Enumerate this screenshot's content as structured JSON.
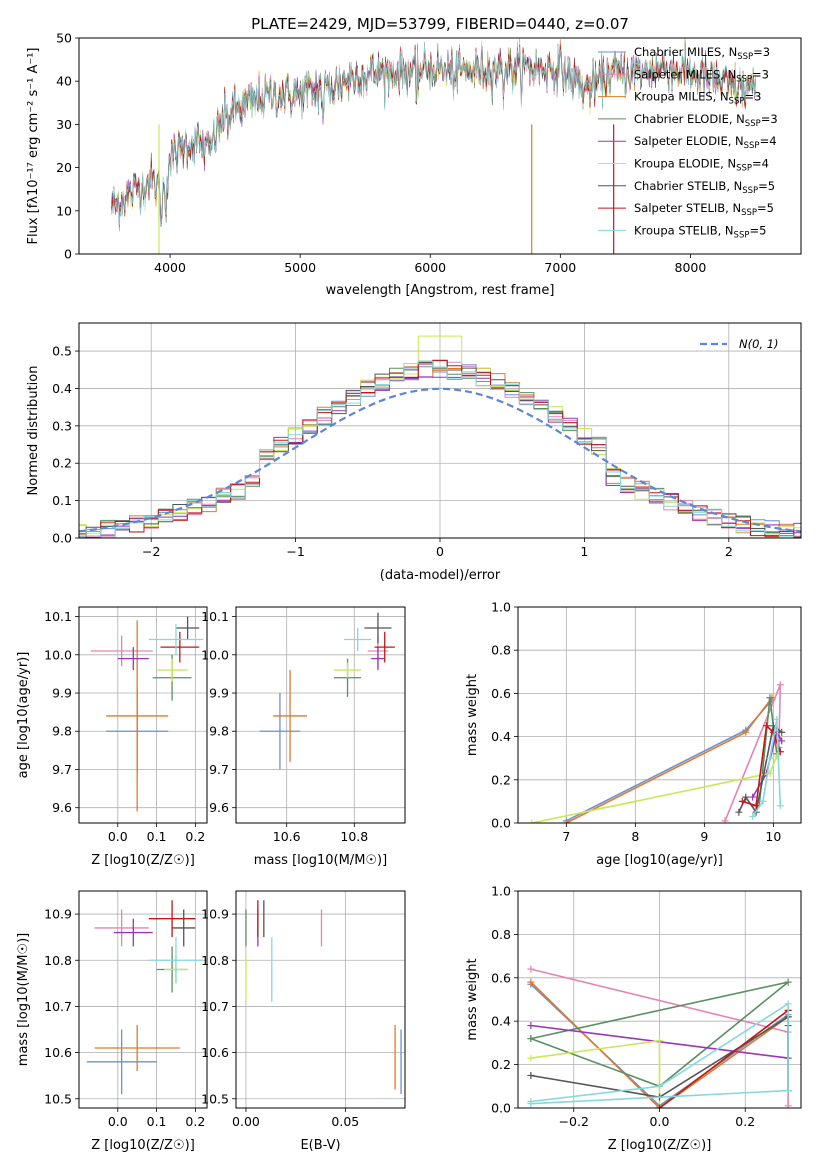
{
  "figure": {
    "title": "PLATE=2429, MJD=53799, FIBERID=0440, z=0.07"
  },
  "colors": {
    "Chabrier MILES": "#6a90d8",
    "Salpeter MILES": "#e583b4",
    "Kroupa MILES": "#e07a2a",
    "Chabrier ELODIE": "#5a8f62",
    "Salpeter ELODIE": "#9a34b8",
    "Kroupa ELODIE": "#c8e855",
    "Chabrier STELIB": "#555555",
    "Salpeter STELIB": "#c01818",
    "Kroupa STELIB": "#85d9dd",
    "normal": "#5b87d6"
  },
  "legend": [
    {
      "label": "Chabrier MILES, N",
      "sub": "SSP",
      "tail": "=3",
      "key": "Chabrier MILES"
    },
    {
      "label": "Salpeter MILES, N",
      "sub": "SSP",
      "tail": "=3",
      "key": "Salpeter MILES"
    },
    {
      "label": "Kroupa MILES, N",
      "sub": "SSP",
      "tail": "=3",
      "key": "Kroupa MILES"
    },
    {
      "label": "Chabrier ELODIE, N",
      "sub": "SSP",
      "tail": "=3",
      "key": "Chabrier ELODIE"
    },
    {
      "label": "Salpeter ELODIE, N",
      "sub": "SSP",
      "tail": "=4",
      "key": "Salpeter ELODIE"
    },
    {
      "label": "Kroupa ELODIE, N",
      "sub": "SSP",
      "tail": "=4",
      "key": "Kroupa ELODIE"
    },
    {
      "label": "Chabrier STELIB, N",
      "sub": "SSP",
      "tail": "=5",
      "key": "Chabrier STELIB"
    },
    {
      "label": "Salpeter STELIB, N",
      "sub": "SSP",
      "tail": "=5",
      "key": "Salpeter STELIB"
    },
    {
      "label": "Kroupa STELIB, N",
      "sub": "SSP",
      "tail": "=5",
      "key": "Kroupa STELIB"
    }
  ],
  "chart_data": [
    {
      "id": "spectrum",
      "type": "line",
      "xlabel": "wavelength [Angstrom, rest frame]",
      "ylabel": "Flux [fλ10⁻¹⁷ erg cm⁻² s⁻¹ A⁻¹]",
      "xlim": [
        3300,
        8850
      ],
      "ylim": [
        0,
        50
      ],
      "xticks": [
        4000,
        5000,
        6000,
        7000,
        8000
      ],
      "yticks": [
        0,
        10,
        20,
        30,
        40,
        50
      ],
      "continuum": {
        "x": [
          3550,
          3700,
          3850,
          3950,
          4000,
          4100,
          4200,
          4300,
          4400,
          4500,
          4600,
          4800,
          5000,
          5200,
          5400,
          5600,
          5800,
          6000,
          6200,
          6400,
          6600,
          6800,
          7000,
          7200,
          7400,
          7600,
          7800,
          8000,
          8200,
          8400,
          8500
        ],
        "y": [
          11,
          14,
          17,
          15,
          22,
          25,
          26,
          24,
          31,
          33,
          35,
          37,
          37,
          38,
          41,
          42,
          42,
          43,
          42,
          43,
          43,
          43,
          43,
          38,
          42,
          42,
          43,
          42,
          40,
          38,
          39
        ]
      }
    },
    {
      "id": "residuals",
      "type": "step",
      "xlabel": "(data-model)/error",
      "ylabel": "Normed distribution",
      "xlim": [
        -2.5,
        2.5
      ],
      "ylim": [
        0,
        0.575
      ],
      "xticks": [
        -2,
        -1,
        0,
        1,
        2
      ],
      "yticks": [
        0.0,
        0.1,
        0.2,
        0.3,
        0.4,
        0.5
      ],
      "legend_label": "N(0, 1)",
      "legend_position": "upper right",
      "bin_width": 0.1
    },
    {
      "id": "age_vs_Z",
      "type": "errorbar",
      "xlabel": "Z [log10(Z/Z☉)]",
      "ylabel": "age [log10(age/yr)]",
      "xlim": [
        -0.1,
        0.23
      ],
      "ylim": [
        9.56,
        10.125
      ],
      "xticks": [
        0.0,
        0.1,
        0.2
      ],
      "yticks": [
        9.6,
        9.7,
        9.8,
        9.9,
        10.0,
        10.1
      ],
      "points": [
        {
          "key": "Chabrier MILES",
          "x": 0.05,
          "y": 9.8,
          "xerr": 0.08,
          "yerr": 0.11
        },
        {
          "key": "Salpeter MILES",
          "x": 0.01,
          "y": 10.01,
          "xerr": 0.08,
          "yerr": 0.04
        },
        {
          "key": "Kroupa MILES",
          "x": 0.05,
          "y": 9.84,
          "xerr": 0.08,
          "yerr": 0.25
        },
        {
          "key": "Chabrier ELODIE",
          "x": 0.14,
          "y": 9.94,
          "xerr": 0.05,
          "yerr": 0.06
        },
        {
          "key": "Salpeter ELODIE",
          "x": 0.04,
          "y": 9.99,
          "xerr": 0.04,
          "yerr": 0.03
        },
        {
          "key": "Kroupa ELODIE",
          "x": 0.14,
          "y": 9.96,
          "xerr": 0.04,
          "yerr": 0.03
        },
        {
          "key": "Chabrier STELIB",
          "x": 0.18,
          "y": 10.07,
          "xerr": 0.03,
          "yerr": 0.03
        },
        {
          "key": "Salpeter STELIB",
          "x": 0.16,
          "y": 10.02,
          "xerr": 0.05,
          "yerr": 0.04
        },
        {
          "key": "Kroupa STELIB",
          "x": 0.15,
          "y": 10.04,
          "xerr": 0.07,
          "yerr": 0.04
        }
      ]
    },
    {
      "id": "age_vs_mass",
      "type": "errorbar",
      "xlabel": "mass [log10(M/M☉)]",
      "xlim": [
        10.45,
        10.95
      ],
      "ylim": [
        9.56,
        10.125
      ],
      "xticks": [
        10.6,
        10.8
      ],
      "yticks": [
        9.6,
        9.7,
        9.8,
        9.9,
        10.0,
        10.1
      ],
      "points": [
        {
          "key": "Chabrier MILES",
          "x": 10.58,
          "y": 9.8,
          "xerr": 0.06,
          "yerr": 0.1
        },
        {
          "key": "Salpeter MILES",
          "x": 10.87,
          "y": 10.01,
          "xerr": 0.03,
          "yerr": 0.04
        },
        {
          "key": "Kroupa MILES",
          "x": 10.61,
          "y": 9.84,
          "xerr": 0.05,
          "yerr": 0.12
        },
        {
          "key": "Chabrier ELODIE",
          "x": 10.78,
          "y": 9.94,
          "xerr": 0.04,
          "yerr": 0.05
        },
        {
          "key": "Salpeter ELODIE",
          "x": 10.87,
          "y": 9.99,
          "xerr": 0.02,
          "yerr": 0.03
        },
        {
          "key": "Kroupa ELODIE",
          "x": 10.78,
          "y": 9.96,
          "xerr": 0.04,
          "yerr": 0.02
        },
        {
          "key": "Chabrier STELIB",
          "x": 10.87,
          "y": 10.07,
          "xerr": 0.04,
          "yerr": 0.04
        },
        {
          "key": "Salpeter STELIB",
          "x": 10.89,
          "y": 10.02,
          "xerr": 0.03,
          "yerr": 0.04
        },
        {
          "key": "Kroupa STELIB",
          "x": 10.81,
          "y": 10.04,
          "xerr": 0.04,
          "yerr": 0.03
        }
      ]
    },
    {
      "id": "weight_vs_age",
      "type": "line",
      "xlabel": "age [log10(age/yr)]",
      "ylabel": "mass weight",
      "xlim": [
        6.3,
        10.4
      ],
      "ylim": [
        0,
        1.0
      ],
      "xticks": [
        7,
        8,
        9,
        10
      ],
      "yticks": [
        0.0,
        0.2,
        0.4,
        0.6,
        0.8,
        1.0
      ],
      "series": [
        {
          "key": "Chabrier MILES",
          "x": [
            7.0,
            9.6,
            9.98
          ],
          "y": [
            0.01,
            0.43,
            0.57
          ]
        },
        {
          "key": "Kroupa MILES",
          "x": [
            7.0,
            9.6,
            9.98
          ],
          "y": [
            0.0,
            0.42,
            0.58
          ]
        },
        {
          "key": "Salpeter MILES",
          "x": [
            9.3,
            10.1,
            10.08
          ],
          "y": [
            0.01,
            0.64,
            0.35
          ]
        },
        {
          "key": "Chabrier ELODIE",
          "x": [
            9.8,
            9.95,
            10.05
          ],
          "y": [
            0.1,
            0.58,
            0.32
          ]
        },
        {
          "key": "Salpeter ELODIE",
          "x": [
            9.7,
            9.9,
            10.05,
            10.12
          ],
          "y": [
            0.12,
            0.23,
            0.42,
            0.38
          ]
        },
        {
          "key": "Kroupa ELODIE",
          "x": [
            6.5,
            9.95,
            10.05
          ],
          "y": [
            0.0,
            0.23,
            0.31
          ]
        },
        {
          "key": "Chabrier STELIB",
          "x": [
            9.5,
            9.6,
            9.75,
            10.0,
            10.12
          ],
          "y": [
            0.05,
            0.12,
            0.05,
            0.45,
            0.42
          ]
        },
        {
          "key": "Salpeter STELIB",
          "x": [
            9.55,
            9.75,
            9.9,
            10.0,
            10.1
          ],
          "y": [
            0.1,
            0.08,
            0.45,
            0.42,
            0.33
          ]
        },
        {
          "key": "Kroupa STELIB",
          "x": [
            9.7,
            9.85,
            9.95,
            10.05,
            10.1
          ],
          "y": [
            0.03,
            0.1,
            0.3,
            0.48,
            0.08
          ]
        }
      ]
    },
    {
      "id": "mass_vs_Z",
      "type": "errorbar",
      "xlabel": "Z [log10(Z/Z☉)]",
      "ylabel": "mass [log10(M/M☉)]",
      "xlim": [
        -0.1,
        0.23
      ],
      "ylim": [
        10.48,
        10.95
      ],
      "xticks": [
        0.0,
        0.1,
        0.2
      ],
      "yticks": [
        10.5,
        10.6,
        10.7,
        10.8,
        10.9
      ],
      "points": [
        {
          "key": "Chabrier MILES",
          "x": 0.01,
          "y": 10.58,
          "xerr": 0.09,
          "yerr": 0.07
        },
        {
          "key": "Salpeter MILES",
          "x": 0.01,
          "y": 10.87,
          "xerr": 0.07,
          "yerr": 0.04
        },
        {
          "key": "Kroupa MILES",
          "x": 0.05,
          "y": 10.61,
          "xerr": 0.11,
          "yerr": 0.05
        },
        {
          "key": "Chabrier ELODIE",
          "x": 0.14,
          "y": 10.78,
          "xerr": 0.04,
          "yerr": 0.05
        },
        {
          "key": "Salpeter ELODIE",
          "x": 0.04,
          "y": 10.86,
          "xerr": 0.05,
          "yerr": 0.03
        },
        {
          "key": "Kroupa ELODIE",
          "x": 0.15,
          "y": 10.78,
          "xerr": 0.03,
          "yerr": 0.03
        },
        {
          "key": "Chabrier STELIB",
          "x": 0.17,
          "y": 10.87,
          "xerr": 0.03,
          "yerr": 0.04
        },
        {
          "key": "Salpeter STELIB",
          "x": 0.14,
          "y": 10.89,
          "xerr": 0.06,
          "yerr": 0.04
        },
        {
          "key": "Kroupa STELIB",
          "x": 0.15,
          "y": 10.8,
          "xerr": 0.07,
          "yerr": 0.05
        }
      ]
    },
    {
      "id": "mass_vs_ebv",
      "type": "errorbar",
      "xlabel": "E(B-V)",
      "xlim": [
        -0.005,
        0.08
      ],
      "ylim": [
        10.48,
        10.95
      ],
      "xticks": [
        0.0,
        0.05
      ],
      "yticks": [
        10.5,
        10.6,
        10.7,
        10.8,
        10.9
      ],
      "points": [
        {
          "key": "Chabrier MILES",
          "x": 0.078,
          "y": 10.58,
          "xerr": 0,
          "yerr": 0.07
        },
        {
          "key": "Salpeter MILES",
          "x": 0.038,
          "y": 10.87,
          "xerr": 0,
          "yerr": 0.04
        },
        {
          "key": "Kroupa MILES",
          "x": 0.075,
          "y": 10.59,
          "xerr": 0,
          "yerr": 0.07
        },
        {
          "key": "Chabrier ELODIE",
          "x": 0.0,
          "y": 10.87,
          "xerr": 0,
          "yerr": 0.04
        },
        {
          "key": "Salpeter ELODIE",
          "x": 0.006,
          "y": 10.87,
          "xerr": 0,
          "yerr": 0.04
        },
        {
          "key": "Kroupa ELODIE",
          "x": 0.0,
          "y": 10.76,
          "xerr": 0,
          "yerr": 0.05
        },
        {
          "key": "Chabrier STELIB",
          "x": 0.009,
          "y": 10.89,
          "xerr": 0,
          "yerr": 0.04
        },
        {
          "key": "Salpeter STELIB",
          "x": 0.006,
          "y": 10.89,
          "xerr": 0,
          "yerr": 0.04
        },
        {
          "key": "Kroupa STELIB",
          "x": 0.013,
          "y": 10.78,
          "xerr": 0,
          "yerr": 0.07
        }
      ]
    },
    {
      "id": "weight_vs_Z",
      "type": "line",
      "xlabel": "Z [log10(Z/Z☉)]",
      "ylabel": "mass weight",
      "xlim": [
        -0.33,
        0.33
      ],
      "ylim": [
        0,
        1.0
      ],
      "xticks": [
        -0.2,
        0.0,
        0.2
      ],
      "yticks": [
        0.0,
        0.2,
        0.4,
        0.6,
        0.8,
        1.0
      ],
      "series": [
        {
          "key": "Chabrier MILES",
          "x": [
            -0.3,
            0.0,
            0.3
          ],
          "y": [
            0.57,
            0.01,
            0.43
          ]
        },
        {
          "key": "Salpeter MILES",
          "x": [
            -0.3,
            0.3,
            0.3
          ],
          "y": [
            0.64,
            0.35,
            0.01
          ]
        },
        {
          "key": "Kroupa MILES",
          "x": [
            -0.3,
            0.0,
            0.3
          ],
          "y": [
            0.58,
            0.0,
            0.42
          ]
        },
        {
          "key": "Chabrier ELODIE",
          "x": [
            -0.3,
            0.0,
            0.3,
            -0.3
          ],
          "y": [
            0.32,
            0.1,
            0.58,
            0.32
          ]
        },
        {
          "key": "Salpeter ELODIE",
          "x": [
            -0.3,
            0.3,
            0.3
          ],
          "y": [
            0.38,
            0.23,
            0.38
          ]
        },
        {
          "key": "Kroupa ELODIE",
          "x": [
            -0.3,
            0.0,
            0.0,
            0.3
          ],
          "y": [
            0.23,
            0.31,
            0.0,
            0.45
          ]
        },
        {
          "key": "Chabrier STELIB",
          "x": [
            -0.3,
            0.0,
            0.3,
            0.3
          ],
          "y": [
            0.15,
            0.05,
            0.42,
            0.08
          ]
        },
        {
          "key": "Salpeter STELIB",
          "x": [
            0.0,
            0.3
          ],
          "y": [
            0.0,
            0.45
          ]
        },
        {
          "key": "Kroupa STELIB",
          "x": [
            -0.3,
            0.0,
            0.3,
            0.3,
            -0.3
          ],
          "y": [
            0.03,
            0.1,
            0.48,
            0.08,
            0.02
          ]
        }
      ]
    }
  ]
}
